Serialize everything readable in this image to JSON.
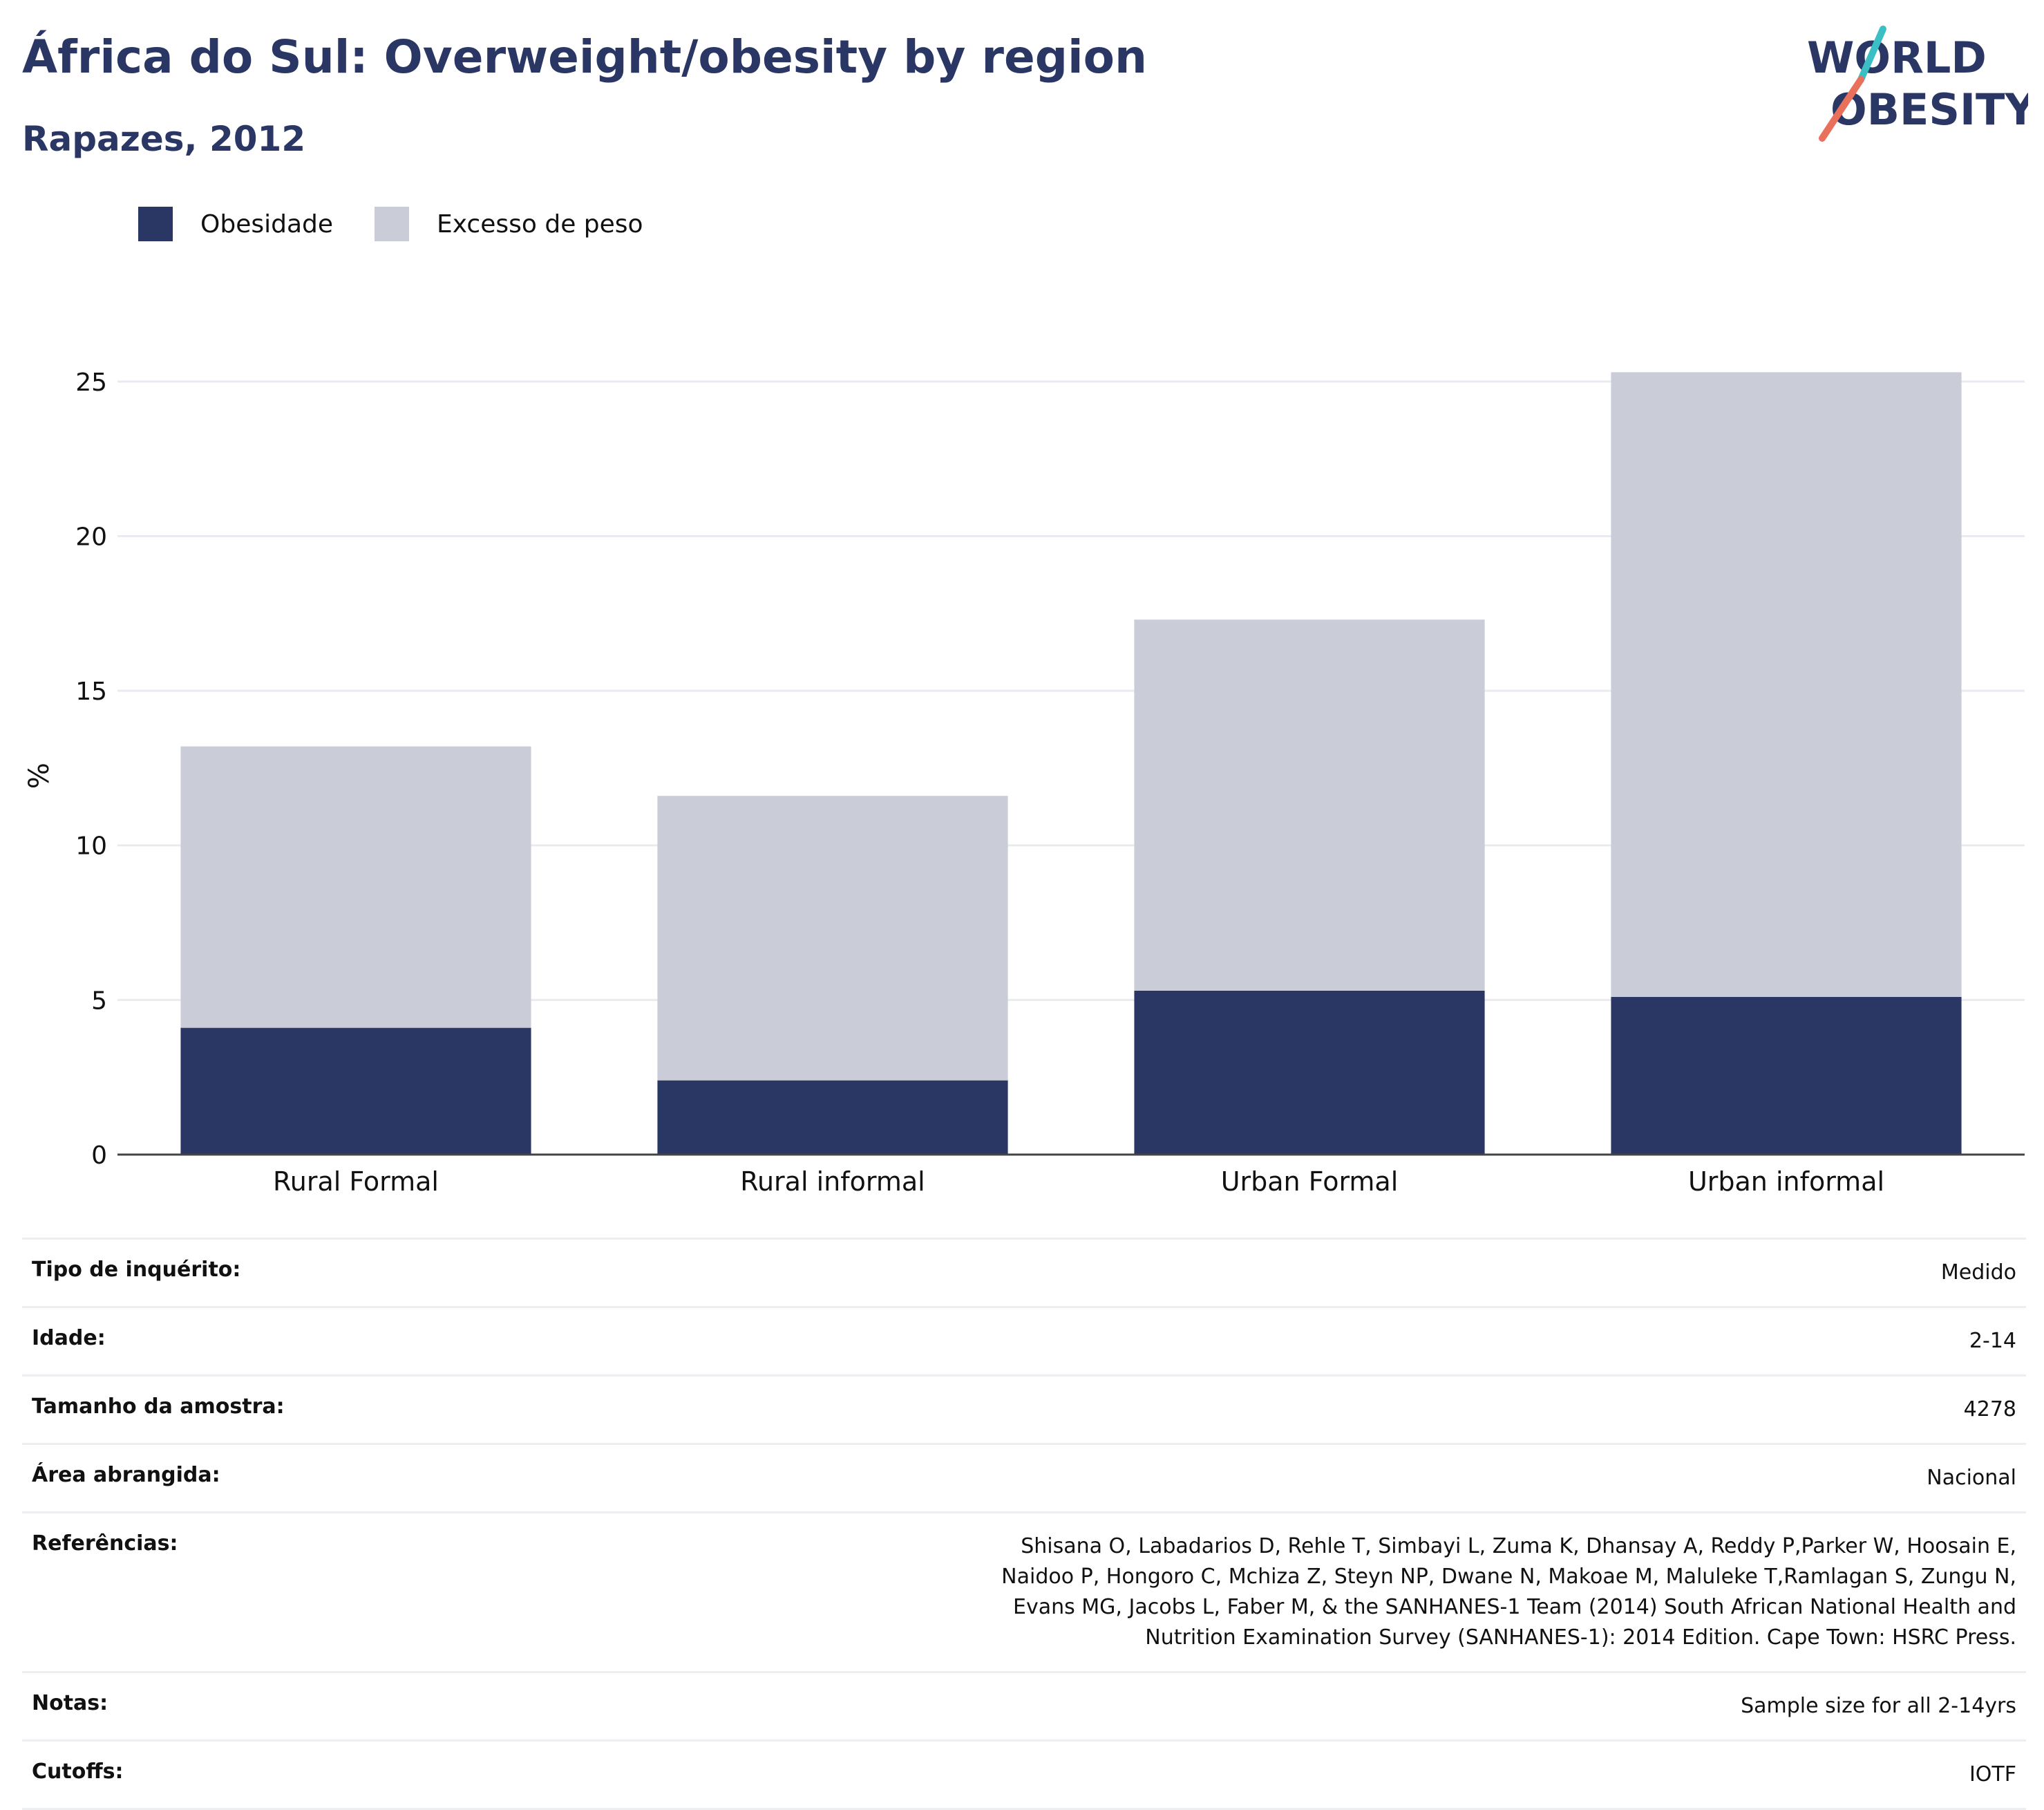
{
  "header": {
    "title": "África do Sul: Overweight/obesity by region",
    "subtitle": "Rapazes, 2012"
  },
  "logo": {
    "line1": "WORLD",
    "line2": "OBESITY",
    "colors": {
      "text": "#2a3664",
      "slash_top": "#3bbfc4",
      "slash_bottom": "#e9705a"
    }
  },
  "legend": [
    {
      "label": "Obesidade",
      "color": "#2a3664"
    },
    {
      "label": "Excesso de peso",
      "color": "#cacdd8"
    }
  ],
  "chart_data": {
    "type": "bar",
    "stacked": true,
    "categories": [
      "Rural Formal",
      "Rural informal",
      "Urban Formal",
      "Urban informal"
    ],
    "series": [
      {
        "name": "Obesidade",
        "color": "#2a3664",
        "values": [
          4.1,
          2.4,
          5.3,
          5.1
        ]
      },
      {
        "name": "Excesso de peso",
        "color": "#cacdd8",
        "values": [
          9.1,
          9.2,
          12.0,
          20.2
        ]
      }
    ],
    "totals": [
      13.2,
      11.6,
      17.3,
      25.3
    ],
    "ylabel": "%",
    "ylim": [
      0,
      27.5
    ],
    "yticks": [
      0,
      5,
      10,
      15,
      20,
      25
    ],
    "grid": true,
    "legend_position": "top-left"
  },
  "info": [
    {
      "label": "Tipo de inquérito:",
      "value": "Medido"
    },
    {
      "label": "Idade:",
      "value": "2-14"
    },
    {
      "label": "Tamanho da amostra:",
      "value": "4278"
    },
    {
      "label": "Área abrangida:",
      "value": "Nacional"
    },
    {
      "label": "Referências:",
      "value": "Shisana O, Labadarios D, Rehle T, Simbayi L, Zuma K, Dhansay A, Reddy P,Parker W, Hoosain E, Naidoo P, Hongoro C, Mchiza Z, Steyn NP, Dwane N, Makoae M, Maluleke T,Ramlagan S, Zungu N, Evans MG, Jacobs L, Faber M, & the SANHANES-1 Team (2014) South African National Health and Nutrition Examination Survey (SANHANES-1): 2014 Edition. Cape Town: HSRC Press."
    },
    {
      "label": "Notas:",
      "value": "Sample size for all 2-14yrs"
    },
    {
      "label": "Cutoffs:",
      "value": "IOTF"
    }
  ]
}
